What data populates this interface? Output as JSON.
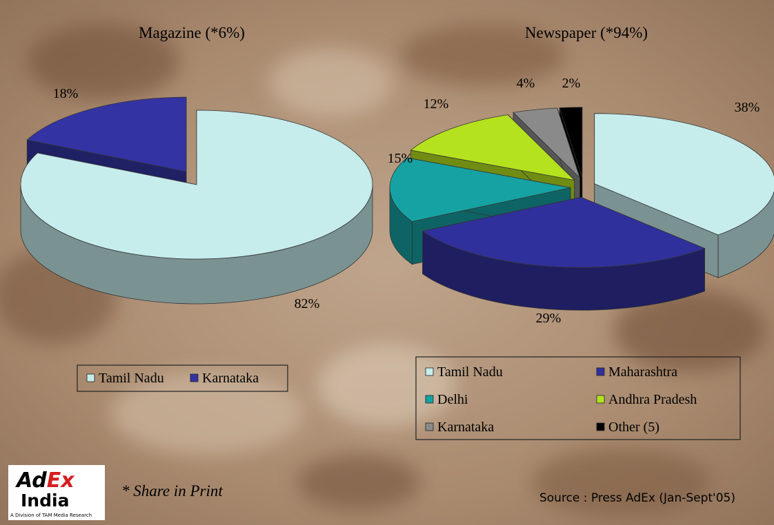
{
  "chart_data": [
    {
      "type": "pie",
      "title": "Magazine (*6%)",
      "categories": [
        "Tamil Nadu",
        "Karnataka"
      ],
      "values": [
        82,
        18
      ],
      "value_labels": [
        "82%",
        "18%"
      ],
      "colors": [
        "#c6ecec",
        "#3333a3"
      ]
    },
    {
      "type": "pie",
      "title": "Newspaper (*94%)",
      "categories": [
        "Tamil Nadu",
        "Maharashtra",
        "Delhi",
        "Andhra Pradesh",
        "Karnataka",
        "Other (5)"
      ],
      "values": [
        38,
        29,
        15,
        12,
        4,
        2
      ],
      "value_labels": [
        "38%",
        "29%",
        "15%",
        "12%",
        "4%",
        "2%"
      ],
      "colors": [
        "#c6ecec",
        "#30309c",
        "#16a2a2",
        "#b4e21e",
        "#8a8a8a",
        "#000000"
      ]
    }
  ],
  "footnote": "* Share in Print",
  "source": "Source : Press AdEx (Jan-Sept'05)",
  "logo": {
    "brand_a": "Ad",
    "brand_b": "Ex",
    "country": "India",
    "tagline": "A Division of TAM Media Research"
  }
}
